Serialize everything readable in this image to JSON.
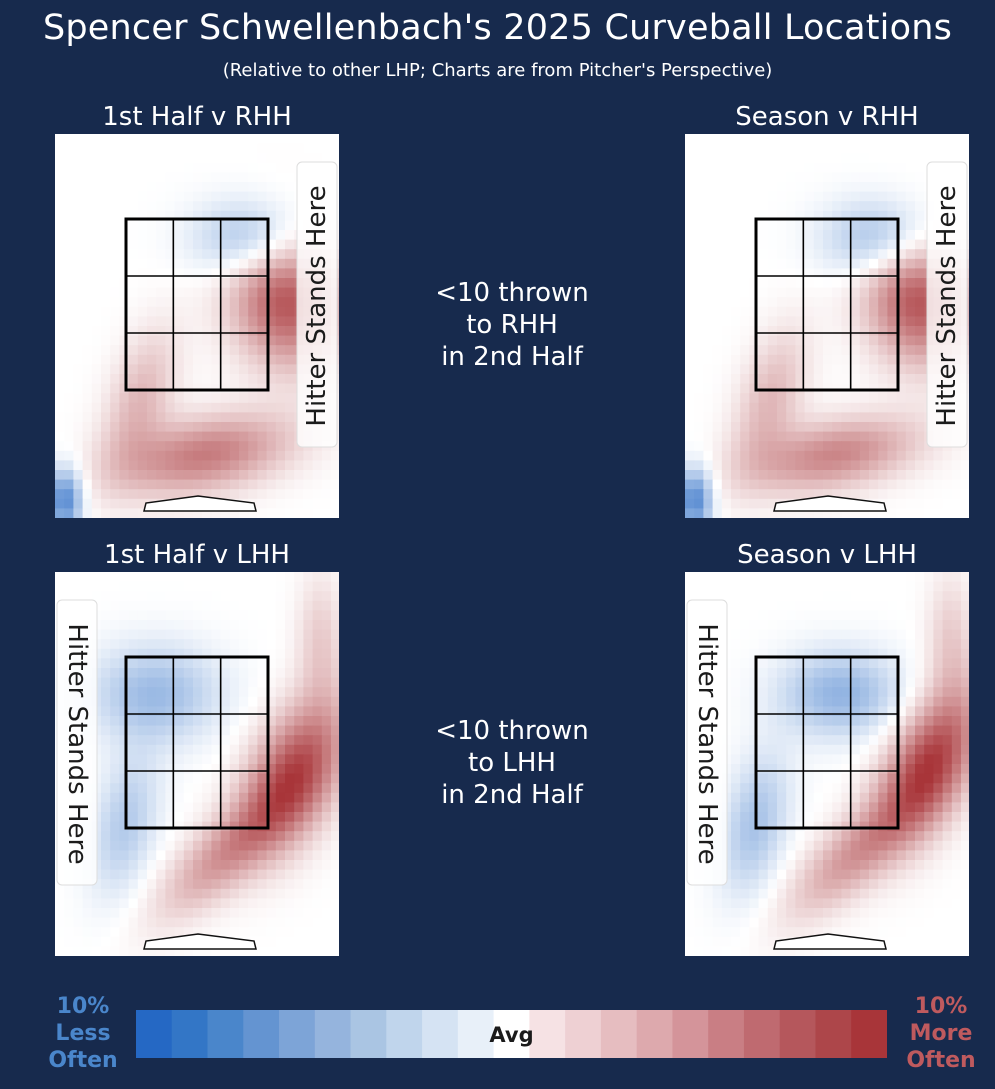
{
  "title": "Spencer Schwellenbach's 2025 Curveball Locations",
  "subtitle": "(Relative to other LHP; Charts are from Pitcher's Perspective)",
  "colors": {
    "background": "#172a4d",
    "less_often": "#2568c4",
    "more_often": "#a83539",
    "avg": "#ffffff"
  },
  "chart_data": [
    {
      "type": "heatmap",
      "title": "1st Half v RHH",
      "hitter_label": "Hitter Stands Here",
      "hitter_side": "right",
      "hotspots": [
        {
          "zone": "upper-right edge of strike zone",
          "intensity": 0.85
        },
        {
          "zone": "down and left, below the zone",
          "intensity": 0.65
        },
        {
          "zone": "left edge, below the zone",
          "intensity": 0.35
        }
      ],
      "coldspots": [
        {
          "zone": "top-middle of strike zone",
          "intensity": 0.5
        },
        {
          "zone": "bottom-left corner of plot",
          "intensity": 0.8
        }
      ]
    },
    {
      "type": "note",
      "text_lines": [
        "<10 thrown",
        "to RHH",
        "in 2nd Half"
      ]
    },
    {
      "type": "heatmap",
      "title": "Season v RHH",
      "hitter_label": "Hitter Stands Here",
      "hitter_side": "right",
      "hotspots": [
        {
          "zone": "upper-right edge of strike zone",
          "intensity": 0.85
        },
        {
          "zone": "down and left, below the zone",
          "intensity": 0.6
        },
        {
          "zone": "left edge, below the zone",
          "intensity": 0.35
        }
      ],
      "coldspots": [
        {
          "zone": "top-middle of strike zone",
          "intensity": 0.5
        },
        {
          "zone": "bottom-left corner of plot",
          "intensity": 0.8
        }
      ]
    },
    {
      "type": "heatmap",
      "title": "1st Half v LHH",
      "hitter_label": "Hitter Stands Here",
      "hitter_side": "left",
      "hotspots": [
        {
          "zone": "lower-right edge of strike zone",
          "intensity": 0.9
        },
        {
          "zone": "diagonal band below the zone",
          "intensity": 0.5
        },
        {
          "zone": "upper right, outside the zone",
          "intensity": 0.25
        }
      ],
      "coldspots": [
        {
          "zone": "upper-left of strike zone",
          "intensity": 0.45
        },
        {
          "zone": "left of zone, low",
          "intensity": 0.35
        }
      ]
    },
    {
      "type": "note",
      "text_lines": [
        "<10 thrown",
        "to LHH",
        "in 2nd Half"
      ]
    },
    {
      "type": "heatmap",
      "title": "Season v LHH",
      "hitter_label": "Hitter Stands Here",
      "hitter_side": "left",
      "hotspots": [
        {
          "zone": "lower-right edge of strike zone",
          "intensity": 0.95
        },
        {
          "zone": "diagonal band below the zone",
          "intensity": 0.5
        },
        {
          "zone": "upper right, outside the zone",
          "intensity": 0.25
        }
      ],
      "coldspots": [
        {
          "zone": "upper-middle of strike zone",
          "intensity": 0.5
        },
        {
          "zone": "left of zone, low",
          "intensity": 0.4
        }
      ]
    }
  ],
  "legend": {
    "left_label": [
      "10%",
      "Less",
      "Often"
    ],
    "center_label": "Avg",
    "right_label": [
      "10%",
      "More",
      "Often"
    ],
    "steps": [
      -10,
      -9,
      -8,
      -7,
      -6,
      -5,
      -4,
      -3,
      -2,
      -1,
      0,
      1,
      2,
      3,
      4,
      5,
      6,
      7,
      8,
      9,
      10
    ],
    "step_colors": [
      "#2568c4",
      "#3376c6",
      "#4a86cb",
      "#6494d1",
      "#7da4d7",
      "#95b4dd",
      "#aac5e3",
      "#c0d5ec",
      "#d5e3f3",
      "#e8f0f9",
      "#ffffff",
      "#f6e2e4",
      "#eed0d3",
      "#e6bdc0",
      "#dda9ad",
      "#d4949a",
      "#c97e84",
      "#bf6a70",
      "#b5575c",
      "#ad464a",
      "#a83539"
    ]
  }
}
